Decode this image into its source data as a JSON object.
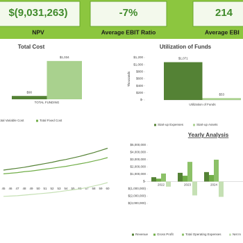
{
  "kpis": [
    {
      "value": "$(9,031,263)",
      "label": "NPV"
    },
    {
      "value": "-7%",
      "label": "Average EBIT Ratio"
    },
    {
      "value": "214",
      "label": "Average EBI"
    }
  ],
  "chart_data": [
    {
      "type": "bar",
      "title": "Total Cost",
      "categories": [
        "TOTAL FUNDING"
      ],
      "series": [
        {
          "color": "#548235",
          "values": [
            90
          ],
          "value_labels": [
            "$90"
          ]
        },
        {
          "color": "#a9d18e",
          "values": [
            1034
          ],
          "value_labels": [
            "$1,034"
          ]
        }
      ],
      "ylim": [
        0,
        1200
      ]
    },
    {
      "type": "bar",
      "title": "Utilization of Funds",
      "y_label": "Thousands",
      "categories": [
        "Utilization of Funds"
      ],
      "series": [
        {
          "name": "Start-up Expenses",
          "color": "#548235",
          "values": [
            1071
          ],
          "value_labels": [
            "$1,071"
          ]
        },
        {
          "name": "Start-up Assets",
          "color": "#a9d18e",
          "values": [
            53
          ],
          "value_labels": [
            "$53"
          ]
        }
      ],
      "ylim": [
        0,
        1200
      ],
      "yticks": [
        {
          "value": 1200,
          "label": "$1,200"
        },
        {
          "value": 1000,
          "label": "$1,000"
        },
        {
          "value": 800,
          "label": "$800"
        },
        {
          "value": 600,
          "label": "$600"
        },
        {
          "value": 400,
          "label": "$400"
        },
        {
          "value": 200,
          "label": "$200"
        },
        {
          "value": 0,
          "label": "$-"
        }
      ]
    },
    {
      "type": "line",
      "x": [
        45,
        46,
        47,
        48,
        49,
        50,
        51,
        52,
        53,
        54,
        55,
        56,
        57,
        58,
        59,
        60
      ],
      "xlim": [
        45,
        60
      ],
      "ylim": [
        0,
        100
      ],
      "series": [
        {
          "name": "Total Variable Cost",
          "color": "#548235",
          "values": [
            50,
            51.5,
            53,
            54.5,
            56.5,
            58.5,
            60.5,
            62.5,
            65,
            67,
            69.5,
            72,
            75,
            78,
            81.5,
            85
          ]
        },
        {
          "name": "Total Fixed Cost",
          "color": "#70ad47",
          "values": [
            44,
            45,
            46,
            47.5,
            48.5,
            50,
            51.5,
            53,
            54.5,
            56,
            58,
            60,
            62,
            64.5,
            67,
            70
          ]
        },
        {
          "color": "#c5e0b4",
          "values": [
            8,
            8.5,
            9,
            10,
            11,
            12,
            13,
            14,
            15.5,
            17,
            18.5,
            20,
            22,
            24.5,
            27,
            30
          ]
        }
      ]
    },
    {
      "type": "bar",
      "title": "Yearly Analysis",
      "categories": [
        "2022",
        "2023",
        "2024"
      ],
      "series": [
        {
          "name": "Revenue",
          "color": "#548235",
          "values": [
            600000,
            1200000,
            1300000
          ]
        },
        {
          "name": "Gross Profit",
          "color": "#70ad47",
          "values": [
            400000,
            800000,
            900000
          ]
        },
        {
          "name": "Total Operating Expenses",
          "color": "#8cc168",
          "values": [
            1100000,
            2700000,
            3000000
          ]
        },
        {
          "name": "Net In",
          "color": "#c5e0b4",
          "values": [
            -700000,
            -1900000,
            -2100000
          ]
        }
      ],
      "ylim": [
        -3000000,
        5000000
      ],
      "yticks": [
        {
          "value": 5000000,
          "label": "$5,000,000"
        },
        {
          "value": 4000000,
          "label": "$4,000,000"
        },
        {
          "value": 3000000,
          "label": "$3,000,000"
        },
        {
          "value": 2000000,
          "label": "$2,000,000"
        },
        {
          "value": 1000000,
          "label": "$1,000,000"
        },
        {
          "value": 0,
          "label": "$-"
        },
        {
          "value": -1000000,
          "label": "$(1,000,000)"
        },
        {
          "value": -2000000,
          "label": "$(2,000,000)"
        },
        {
          "value": -3000000,
          "label": "$(3,000,000)"
        }
      ]
    }
  ]
}
